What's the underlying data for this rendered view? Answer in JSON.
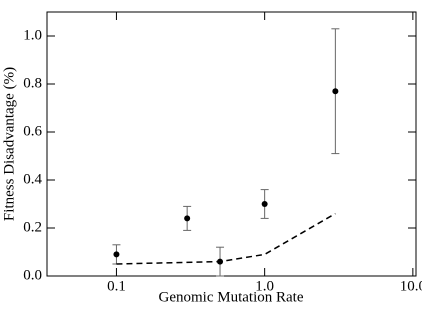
{
  "chart_data": {
    "type": "scatter",
    "x_label": "Genomic Mutation Rate",
    "y_label": "Fitness Disadvantage (%)",
    "xscale": "log",
    "xlim": [
      0.034,
      10.5
    ],
    "ylim": [
      0,
      1.1
    ],
    "xticks": [
      0.1,
      {
        "value": 1,
        "label": "1.0"
      },
      {
        "value": 10,
        "label": "10.0"
      }
    ],
    "yticks": [
      {
        "value": 0,
        "label": "0.0"
      },
      0.2,
      0.4,
      0.6,
      0.8,
      {
        "value": 1,
        "label": "1.0"
      }
    ],
    "series": [
      {
        "type": "errorbar",
        "color": "#000000",
        "x": [
          0.1,
          0.3,
          0.5,
          1.0,
          3.0
        ],
        "values": [
          0.09,
          0.24,
          0.06,
          0.3,
          0.77
        ],
        "errors": [
          0.04,
          0.05,
          0.06,
          0.06,
          0.26
        ]
      },
      {
        "type": "line",
        "color": "#000000",
        "dashed": true,
        "x": [
          0.1,
          0.5,
          1.0,
          3.0
        ],
        "values": [
          0.05,
          0.06,
          0.09,
          0.26
        ]
      }
    ]
  }
}
